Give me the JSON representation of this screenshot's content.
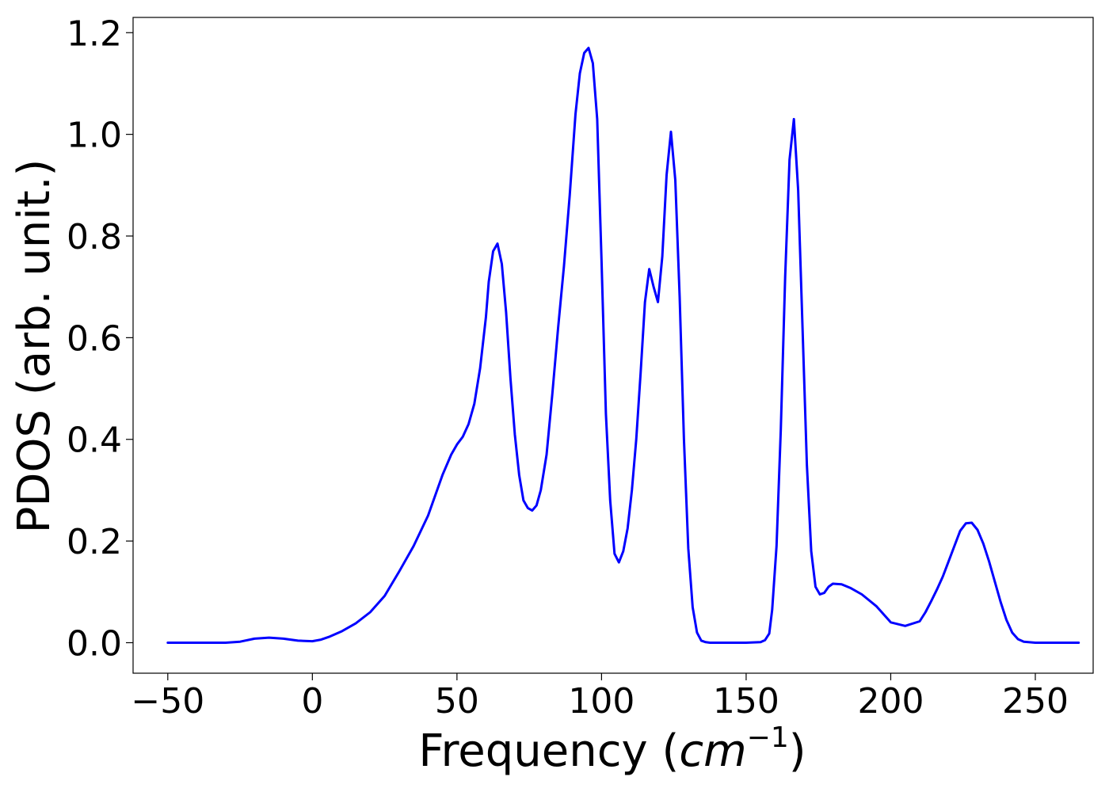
{
  "chart_data": {
    "type": "line",
    "title": "",
    "xlabel": "Frequency (",
    "xlabel_math": "cm",
    "xlabel_sup": "−1",
    "xlabel_close": ")",
    "ylabel": "PDOS (arb. unit.)",
    "xlim": [
      -62,
      270
    ],
    "ylim": [
      -0.06,
      1.23
    ],
    "xticks": [
      -50,
      0,
      50,
      100,
      150,
      200,
      250
    ],
    "xtick_labels": [
      "−50",
      "0",
      "50",
      "100",
      "150",
      "200",
      "250"
    ],
    "yticks": [
      0.0,
      0.2,
      0.4,
      0.6,
      0.8,
      1.0,
      1.2
    ],
    "ytick_labels": [
      "0.0",
      "0.2",
      "0.4",
      "0.6",
      "0.8",
      "1.0",
      "1.2"
    ],
    "grid": false,
    "series": [
      {
        "color": "#0000ff",
        "x": [
          -50,
          -40,
          -30,
          -25,
          -20,
          -15,
          -10,
          -5,
          0,
          3,
          6,
          10,
          15,
          20,
          25,
          30,
          35,
          40,
          45,
          48,
          50,
          52,
          54,
          56,
          58,
          60,
          61,
          62.5,
          64,
          65.5,
          67,
          68.5,
          70,
          71.5,
          73,
          74.5,
          76,
          77.5,
          79,
          81,
          83,
          85,
          87,
          89,
          91,
          92.5,
          94,
          95.5,
          97,
          98.5,
          100,
          101.5,
          103,
          104.5,
          106,
          107.5,
          109,
          110.5,
          112,
          113.5,
          115,
          116.5,
          118,
          119.5,
          121,
          122.5,
          124,
          125.5,
          127,
          128.5,
          130,
          131.5,
          133,
          134.5,
          136,
          137.5,
          140,
          145,
          150,
          155,
          156.5,
          158,
          159,
          160.5,
          162,
          163.5,
          165,
          166.5,
          168,
          169.5,
          171,
          172.5,
          174,
          175.5,
          177,
          178.5,
          180,
          183,
          186,
          190,
          195,
          200,
          205,
          210,
          212,
          214,
          216,
          218,
          220,
          222,
          224,
          226,
          228,
          230,
          232,
          234,
          236,
          238,
          240,
          242,
          244,
          246,
          250,
          255,
          260,
          265
        ],
        "y": [
          0.0,
          0.0,
          0.0,
          0.002,
          0.008,
          0.01,
          0.008,
          0.004,
          0.003,
          0.006,
          0.012,
          0.022,
          0.038,
          0.06,
          0.092,
          0.14,
          0.19,
          0.25,
          0.33,
          0.37,
          0.39,
          0.405,
          0.43,
          0.47,
          0.54,
          0.64,
          0.71,
          0.77,
          0.785,
          0.745,
          0.65,
          0.52,
          0.41,
          0.33,
          0.28,
          0.265,
          0.26,
          0.27,
          0.3,
          0.37,
          0.49,
          0.62,
          0.74,
          0.88,
          1.04,
          1.12,
          1.16,
          1.17,
          1.14,
          1.03,
          0.75,
          0.45,
          0.28,
          0.175,
          0.158,
          0.18,
          0.225,
          0.3,
          0.4,
          0.53,
          0.67,
          0.735,
          0.7,
          0.67,
          0.76,
          0.92,
          1.005,
          0.91,
          0.68,
          0.4,
          0.185,
          0.07,
          0.02,
          0.004,
          0.001,
          0.0,
          0.0,
          0.0,
          0.0,
          0.001,
          0.005,
          0.018,
          0.065,
          0.19,
          0.42,
          0.72,
          0.95,
          1.03,
          0.89,
          0.62,
          0.35,
          0.18,
          0.11,
          0.095,
          0.098,
          0.11,
          0.116,
          0.115,
          0.108,
          0.095,
          0.072,
          0.04,
          0.033,
          0.042,
          0.06,
          0.082,
          0.105,
          0.13,
          0.16,
          0.19,
          0.22,
          0.235,
          0.236,
          0.222,
          0.195,
          0.16,
          0.12,
          0.08,
          0.045,
          0.02,
          0.007,
          0.002,
          0.0,
          0.0,
          0.0,
          0.0
        ]
      }
    ]
  }
}
